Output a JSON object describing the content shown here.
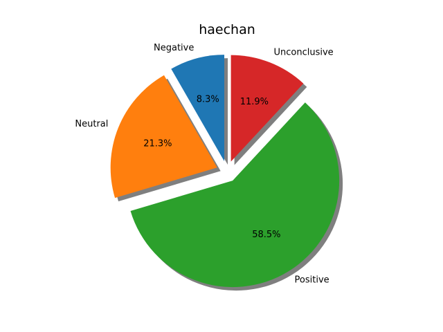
{
  "chart_data": {
    "type": "pie",
    "title": "haechan",
    "slices": [
      {
        "label": "Negative",
        "value": 8.3,
        "pct_label": "8.3%",
        "color": "#1f77b4"
      },
      {
        "label": "Neutral",
        "value": 21.3,
        "pct_label": "21.3%",
        "color": "#ff7f0e"
      },
      {
        "label": "Positive",
        "value": 58.5,
        "pct_label": "58.5%",
        "color": "#2ca02c"
      },
      {
        "label": "Unconclusive",
        "value": 11.9,
        "pct_label": "11.9%",
        "color": "#d62728"
      }
    ],
    "exploded": true,
    "shadow": true,
    "start_angle_deg": 90,
    "direction": "counterclockwise"
  }
}
